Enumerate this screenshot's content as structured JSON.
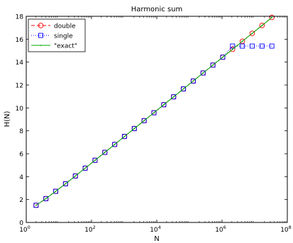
{
  "chart_data": {
    "type": "line",
    "title": "Harmonic sum",
    "xlabel": "N",
    "ylabel": "H(N)",
    "x_scale": "log",
    "xlim": [
      1,
      100000000
    ],
    "ylim": [
      0,
      18
    ],
    "x_ticks": [
      {
        "v": 1,
        "base": "10",
        "exp": "0"
      },
      {
        "v": 100,
        "base": "10",
        "exp": "2"
      },
      {
        "v": 10000,
        "base": "10",
        "exp": "4"
      },
      {
        "v": 1000000,
        "base": "10",
        "exp": "6"
      },
      {
        "v": 100000000,
        "base": "10",
        "exp": "8"
      }
    ],
    "y_ticks": [
      {
        "v": 0,
        "label": "0"
      },
      {
        "v": 2,
        "label": "2"
      },
      {
        "v": 4,
        "label": "4"
      },
      {
        "v": 6,
        "label": "6"
      },
      {
        "v": 8,
        "label": "8"
      },
      {
        "v": 10,
        "label": "10"
      },
      {
        "v": 12,
        "label": "12"
      },
      {
        "v": 14,
        "label": "14"
      },
      {
        "v": 16,
        "label": "16"
      },
      {
        "v": 18,
        "label": "18"
      }
    ],
    "grid": false,
    "legend": "top-left",
    "x": [
      2,
      4,
      8,
      16,
      32,
      64,
      128,
      256,
      512,
      1024,
      2048,
      4096,
      8192,
      16384,
      32768,
      65536,
      131072,
      262144,
      524288,
      1048576,
      2097152,
      4194304,
      8388608,
      16777216,
      33554432
    ],
    "series": [
      {
        "name": "double",
        "color": "#ff0000",
        "line": "dashed",
        "marker": "circle",
        "values": [
          1.5,
          2.08,
          2.72,
          3.38,
          4.06,
          4.74,
          5.43,
          6.12,
          6.81,
          7.51,
          8.2,
          8.89,
          9.58,
          10.28,
          10.97,
          11.66,
          12.35,
          13.05,
          13.74,
          14.43,
          15.12,
          15.82,
          16.51,
          17.2,
          17.9
        ]
      },
      {
        "name": "single",
        "color": "#0000ff",
        "line": "dotted",
        "marker": "square",
        "values": [
          1.5,
          2.08,
          2.72,
          3.38,
          4.06,
          4.74,
          5.43,
          6.12,
          6.81,
          7.51,
          8.2,
          8.89,
          9.58,
          10.28,
          10.97,
          11.66,
          12.35,
          13.05,
          13.74,
          14.43,
          15.4,
          15.4,
          15.4,
          15.4,
          15.4
        ]
      },
      {
        "name": "\"exact\"",
        "color": "#00aa00",
        "line": "solid",
        "marker": "point",
        "values": [
          1.5,
          2.08,
          2.72,
          3.38,
          4.06,
          4.74,
          5.43,
          6.12,
          6.81,
          7.51,
          8.2,
          8.89,
          9.58,
          10.28,
          10.97,
          11.66,
          12.35,
          13.05,
          13.74,
          14.43,
          15.12,
          15.82,
          16.51,
          17.2,
          17.9
        ]
      }
    ]
  }
}
